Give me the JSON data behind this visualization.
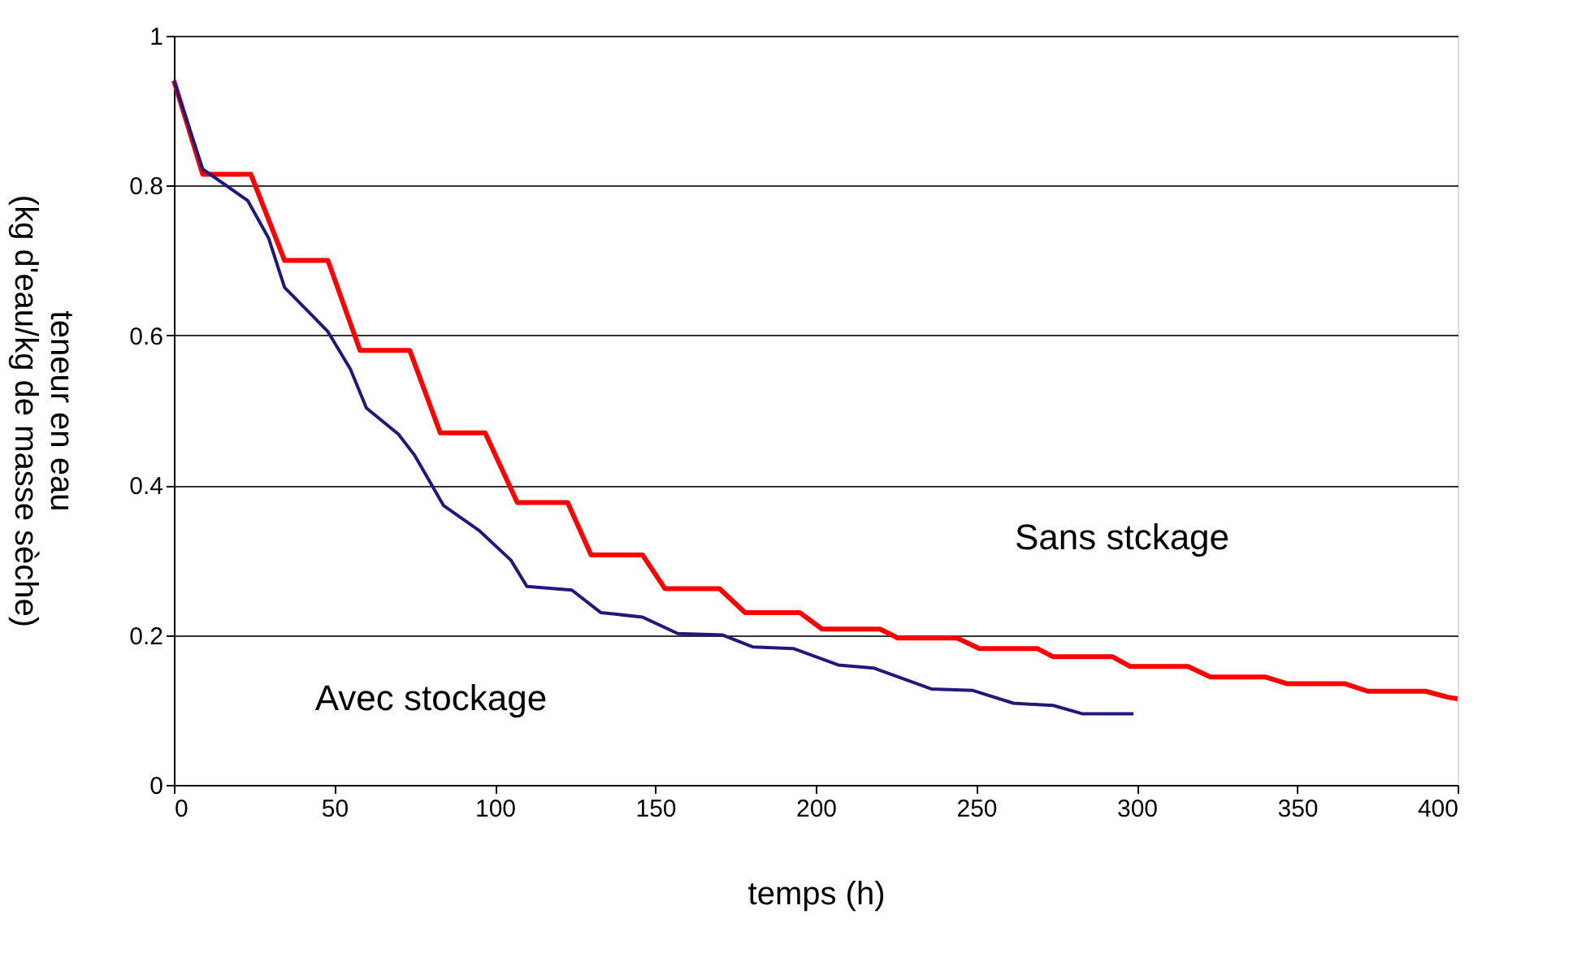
{
  "chart_data": {
    "type": "line",
    "xlabel": "temps (h)",
    "ylabel": [
      "teneur en eau",
      "(kg d'eau/kg de masse sèche)"
    ],
    "xlim": [
      0,
      400
    ],
    "xticks": [
      0,
      50,
      100,
      150,
      200,
      250,
      300,
      350,
      400
    ],
    "ylim": [
      0,
      1
    ],
    "yticks": [
      0,
      0.2,
      0.4,
      0.6,
      0.8,
      1
    ],
    "grid": "y",
    "line_style": "solid",
    "marker": "none",
    "series": [
      {
        "color": "#ff0000",
        "x": [
          0,
          9,
          24,
          34.5,
          48,
          58,
          73.5,
          83,
          97,
          107,
          122.7,
          130,
          146,
          153,
          170,
          178,
          195,
          202,
          220,
          225.6,
          244,
          251,
          269,
          274,
          292.5,
          298,
          316,
          323,
          340,
          347,
          365,
          372,
          390,
          397,
          400
        ],
        "values": [
          0.94,
          0.815,
          0.815,
          0.7,
          0.7,
          0.58,
          0.58,
          0.47,
          0.47,
          0.377,
          0.377,
          0.307,
          0.307,
          0.262,
          0.262,
          0.23,
          0.23,
          0.208,
          0.208,
          0.196,
          0.196,
          0.182,
          0.182,
          0.171,
          0.171,
          0.158,
          0.158,
          0.144,
          0.144,
          0.135,
          0.135,
          0.125,
          0.125,
          0.117,
          0.115
        ]
      },
      {
        "color": "#1f1a7a",
        "x": [
          0,
          9,
          23,
          29.5,
          34.5,
          43,
          48,
          55,
          60,
          70,
          75,
          84,
          95,
          105,
          110,
          124,
          133,
          146,
          157,
          171,
          180.5,
          193,
          207,
          218,
          236,
          249,
          261.6,
          274,
          283,
          299
        ],
        "values": [
          0.94,
          0.822,
          0.78,
          0.73,
          0.664,
          0.627,
          0.605,
          0.555,
          0.503,
          0.468,
          0.44,
          0.373,
          0.34,
          0.3,
          0.265,
          0.26,
          0.23,
          0.224,
          0.202,
          0.2,
          0.184,
          0.182,
          0.16,
          0.156,
          0.128,
          0.126,
          0.109,
          0.106,
          0.095,
          0.095
        ]
      }
    ],
    "annotations": [
      "Sans stckage",
      "Avec stockage"
    ]
  }
}
